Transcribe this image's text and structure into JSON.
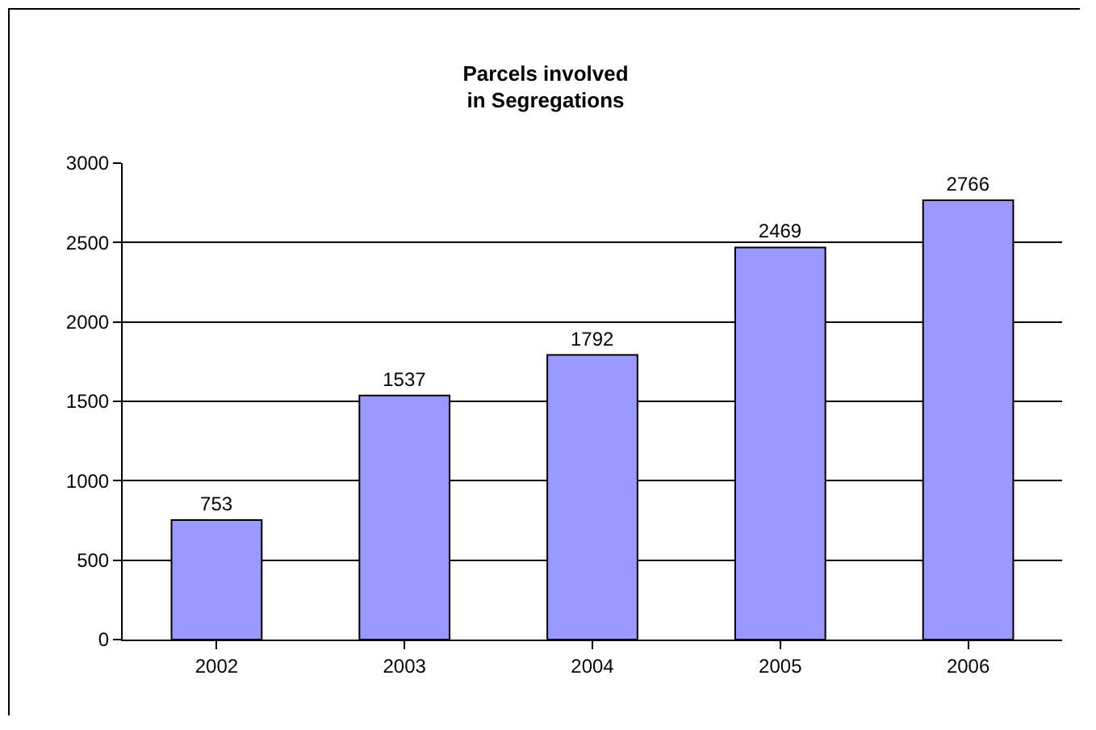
{
  "chart_data": {
    "type": "bar",
    "title": "Parcels involved\nin Segregations",
    "categories": [
      "2002",
      "2003",
      "2004",
      "2005",
      "2006"
    ],
    "values": [
      753,
      1537,
      1792,
      2469,
      2766
    ],
    "color": "#9999ff",
    "ylim": [
      0,
      3000
    ],
    "yticks": [
      0,
      500,
      1000,
      1500,
      2000,
      2500,
      3000
    ],
    "grid": "y",
    "data_labels": true
  }
}
